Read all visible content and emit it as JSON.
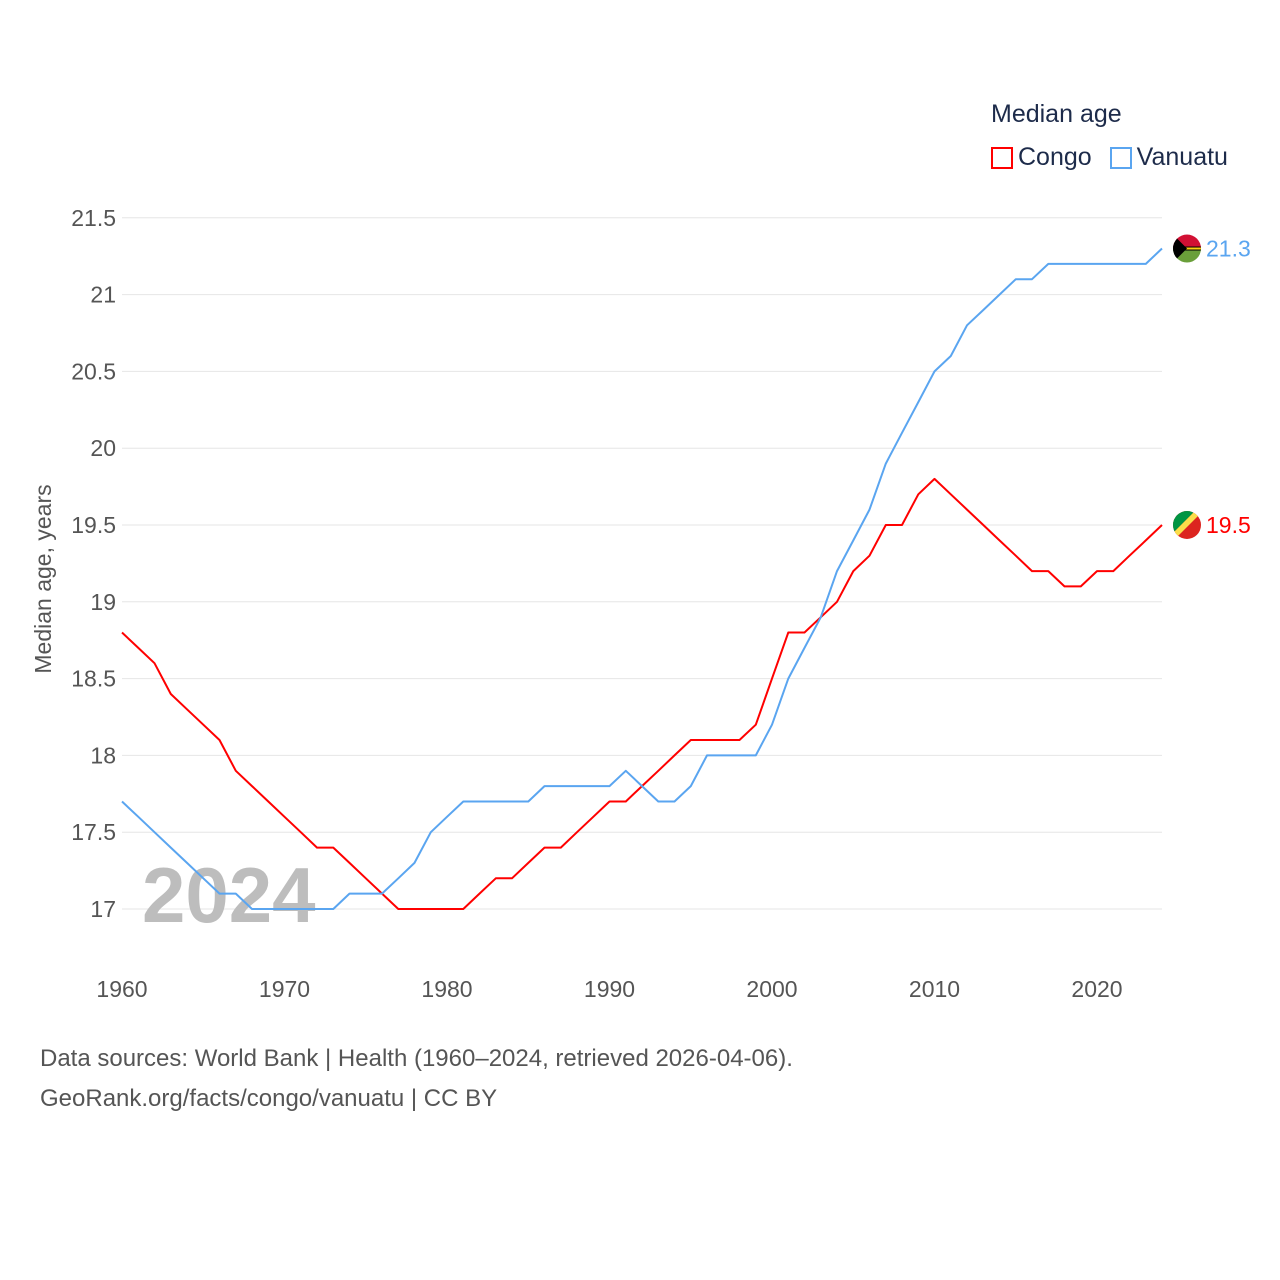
{
  "chart_data": {
    "type": "line",
    "title": "Median age",
    "xlabel": "",
    "ylabel": "Median age, years",
    "xlim": [
      1960,
      2024
    ],
    "ylim": [
      16.7,
      21.5
    ],
    "yticks": [
      17,
      17.5,
      18,
      18.5,
      19,
      19.5,
      20,
      20.5,
      21,
      21.5
    ],
    "ytick_labels": [
      "17",
      "17.5",
      "18",
      "18.5",
      "19",
      "19.5",
      "20",
      "20.5",
      "21",
      "21.5"
    ],
    "xticks": [
      1960,
      1970,
      1980,
      1990,
      2000,
      2010,
      2020
    ],
    "xtick_labels": [
      "1960",
      "1970",
      "1980",
      "1990",
      "2000",
      "2010",
      "2020"
    ],
    "grid": true,
    "legend_placement": "top-right",
    "watermark_year": "2024",
    "x": [
      1960,
      1961,
      1962,
      1963,
      1964,
      1965,
      1966,
      1967,
      1968,
      1969,
      1970,
      1971,
      1972,
      1973,
      1974,
      1975,
      1976,
      1977,
      1978,
      1979,
      1980,
      1981,
      1982,
      1983,
      1984,
      1985,
      1986,
      1987,
      1988,
      1989,
      1990,
      1991,
      1992,
      1993,
      1994,
      1995,
      1996,
      1997,
      1998,
      1999,
      2000,
      2001,
      2002,
      2003,
      2004,
      2005,
      2006,
      2007,
      2008,
      2009,
      2010,
      2011,
      2012,
      2013,
      2014,
      2015,
      2016,
      2017,
      2018,
      2019,
      2020,
      2021,
      2022,
      2023,
      2024
    ],
    "series": [
      {
        "name": "Congo",
        "color": "#ff0000",
        "end_label": "19.5",
        "values": [
          18.8,
          18.7,
          18.6,
          18.4,
          18.3,
          18.2,
          18.1,
          17.9,
          17.8,
          17.7,
          17.6,
          17.5,
          17.4,
          17.4,
          17.3,
          17.2,
          17.1,
          17.0,
          17.0,
          17.0,
          17.0,
          17.0,
          17.1,
          17.2,
          17.2,
          17.3,
          17.4,
          17.4,
          17.5,
          17.6,
          17.7,
          17.7,
          17.8,
          17.9,
          18.0,
          18.1,
          18.1,
          18.1,
          18.1,
          18.2,
          18.5,
          18.8,
          18.8,
          18.9,
          19.0,
          19.2,
          19.3,
          19.5,
          19.5,
          19.7,
          19.8,
          19.7,
          19.6,
          19.5,
          19.4,
          19.3,
          19.2,
          19.2,
          19.1,
          19.1,
          19.2,
          19.2,
          19.3,
          19.4,
          19.5
        ]
      },
      {
        "name": "Vanuatu",
        "color": "#5aa5f0",
        "end_label": "21.3",
        "values": [
          17.7,
          17.6,
          17.5,
          17.4,
          17.3,
          17.2,
          17.1,
          17.1,
          17.0,
          17.0,
          17.0,
          17.0,
          17.0,
          17.0,
          17.1,
          17.1,
          17.1,
          17.2,
          17.3,
          17.5,
          17.6,
          17.7,
          17.7,
          17.7,
          17.7,
          17.7,
          17.8,
          17.8,
          17.8,
          17.8,
          17.8,
          17.9,
          17.8,
          17.7,
          17.7,
          17.8,
          18.0,
          18.0,
          18.0,
          18.0,
          18.2,
          18.5,
          18.7,
          18.9,
          19.2,
          19.4,
          19.6,
          19.9,
          20.1,
          20.3,
          20.5,
          20.6,
          20.8,
          20.9,
          21.0,
          21.1,
          21.1,
          21.2,
          21.2,
          21.2,
          21.2,
          21.2,
          21.2,
          21.2,
          21.3
        ]
      }
    ]
  },
  "source_line1": "Data sources: World Bank | Health (1960–2024, retrieved 2026-04-06).",
  "source_line2": "GeoRank.org/facts/congo/vanuatu | CC BY"
}
